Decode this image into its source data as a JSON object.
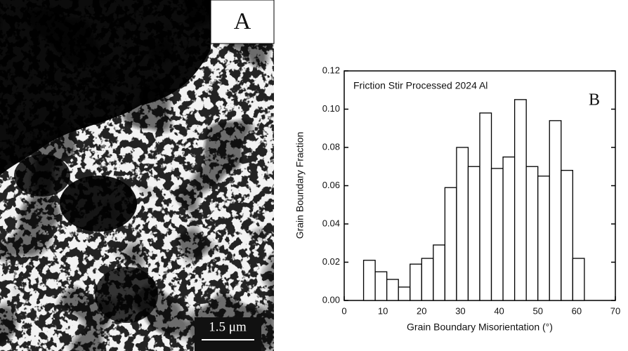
{
  "panel_a": {
    "label": "A",
    "scale_bar": "1.5 μm"
  },
  "chart_data": {
    "type": "histogram",
    "title": "Friction Stir Processed 2024 Al",
    "panel_label": "B",
    "x_label": "Grain Boundary Misorientation (°)",
    "y_label": "Grain Boundary Fraction",
    "bins": [
      5,
      8,
      11,
      14,
      17,
      20,
      23,
      26,
      29,
      32,
      35,
      38,
      41,
      44,
      47,
      50,
      53,
      56,
      59,
      62
    ],
    "values": [
      0.021,
      0.015,
      0.011,
      0.007,
      0.019,
      0.022,
      0.029,
      0.059,
      0.08,
      0.07,
      0.098,
      0.069,
      0.075,
      0.105,
      0.07,
      0.065,
      0.094,
      0.068,
      0.022
    ],
    "color": "#ffffff",
    "xlim": [
      0,
      70
    ],
    "xticks": [
      0,
      10,
      20,
      30,
      40,
      50,
      60,
      70
    ],
    "ylim": [
      0,
      0.12
    ],
    "yticks": [
      {
        "value": 0,
        "label": "0.00"
      },
      0.02,
      0.04,
      0.06,
      0.08,
      {
        "value": 0.1,
        "label": "0.10"
      },
      0.12
    ]
  }
}
